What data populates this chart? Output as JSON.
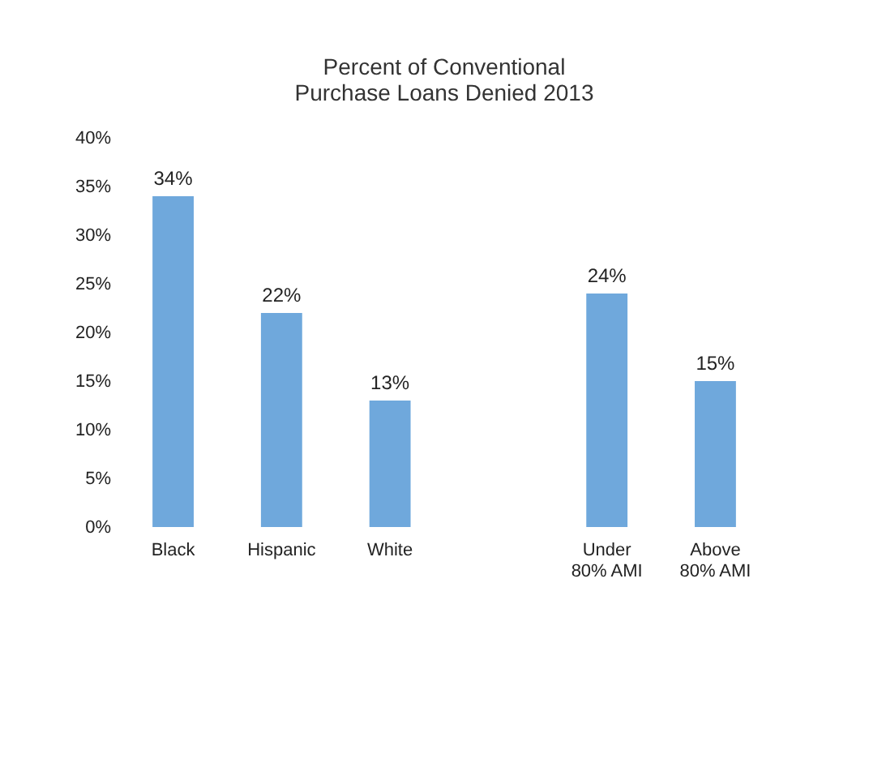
{
  "chart_data": {
    "type": "bar",
    "title": "Percent of Conventional Purchase Loans Denied 2013",
    "categories": [
      "Black",
      "Hispanic",
      "White",
      null,
      "Under 80% AMI",
      "Above 80% AMI"
    ],
    "values": [
      34,
      22,
      13,
      null,
      24,
      15
    ],
    "value_labels": [
      "34%",
      "22%",
      "13%",
      null,
      "24%",
      "15%"
    ],
    "color": "#6fa8dc",
    "ylim": [
      0,
      40
    ],
    "yticks": [
      {
        "value": 0,
        "label": "0%"
      },
      {
        "value": 5,
        "label": "5%"
      },
      {
        "value": 10,
        "label": "10%"
      },
      {
        "value": 15,
        "label": "15%"
      },
      {
        "value": 20,
        "label": "20%"
      },
      {
        "value": 25,
        "label": "25%"
      },
      {
        "value": 30,
        "label": "30%"
      },
      {
        "value": 35,
        "label": "35%"
      },
      {
        "value": 40,
        "label": "40%"
      }
    ],
    "grid": false
  }
}
